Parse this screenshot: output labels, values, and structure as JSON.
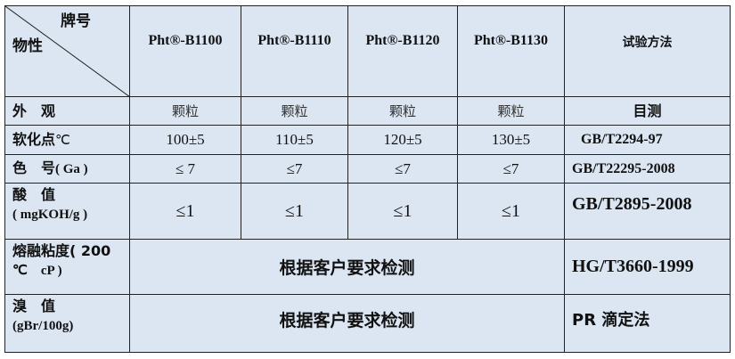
{
  "header": {
    "corner_brand": "牌号",
    "corner_property": "物性",
    "grades": [
      "Pht®-B1100",
      "Pht®-B1110",
      "Pht®-B1120",
      "Pht®-B1130"
    ],
    "method": "试验方法"
  },
  "rows": [
    {
      "property": "外　观",
      "values": [
        "颗粒",
        "颗粒",
        "颗粒",
        "颗粒"
      ],
      "method": "目测"
    },
    {
      "property": "软化点",
      "unit": "℃",
      "values": [
        "100±5",
        "110±5",
        "120±5",
        "130±5"
      ],
      "method": "GB/T2294-97"
    },
    {
      "property": "色　号",
      "unit": "( Ga )",
      "values": [
        "≤ 7",
        "≤7",
        "≤7",
        "≤7"
      ],
      "method": "GB/T22295-2008"
    },
    {
      "property": "酸　值",
      "unit": "( mgKOH/g )",
      "values": [
        "≤1",
        "≤1",
        "≤1",
        "≤1"
      ],
      "method": "GB/T2895-2008"
    },
    {
      "property": "熔融粘度( 200",
      "unit": "℃　cP )",
      "merged_value": "根据客户要求检测",
      "method": "HG/T3660-1999"
    },
    {
      "property": "溴　值",
      "unit": "(gBr/100g)",
      "merged_value": "根据客户要求检测",
      "method": "PR 滴定法"
    }
  ]
}
